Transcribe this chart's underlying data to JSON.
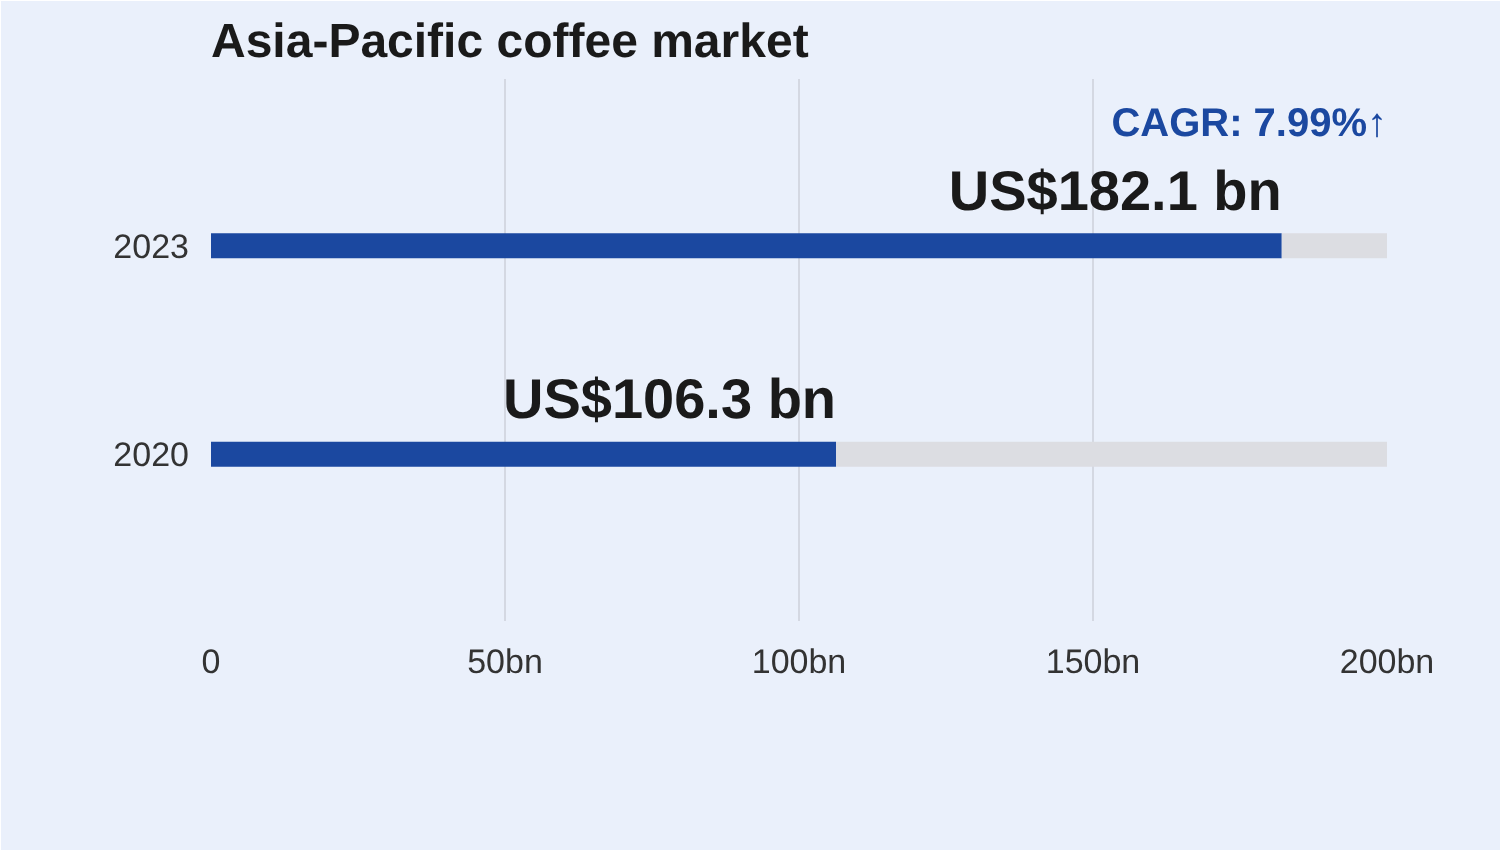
{
  "chart_data": {
    "type": "bar",
    "title": "Asia-Pacific coffee market",
    "orientation": "horizontal",
    "stacked": true,
    "categories": [
      "2023",
      "2020"
    ],
    "series": [
      {
        "color": "#1b48a0",
        "values": [
          182.1,
          106.3
        ],
        "value_labels": [
          "US$182.1 bn",
          "US$106.3 bn"
        ]
      },
      {
        "color": "#dcdde2",
        "values": [
          17.9,
          93.7
        ]
      }
    ],
    "xlim": [
      0,
      200
    ],
    "xticks": [
      0,
      {
        "value": 50,
        "label": "50bn"
      },
      {
        "value": 100,
        "label": "100bn"
      },
      {
        "value": 150,
        "label": "150bn"
      },
      {
        "value": 200,
        "label": "200bn"
      }
    ],
    "grid": "x",
    "annotations": [
      "CAGR: 7.99%↑"
    ]
  }
}
